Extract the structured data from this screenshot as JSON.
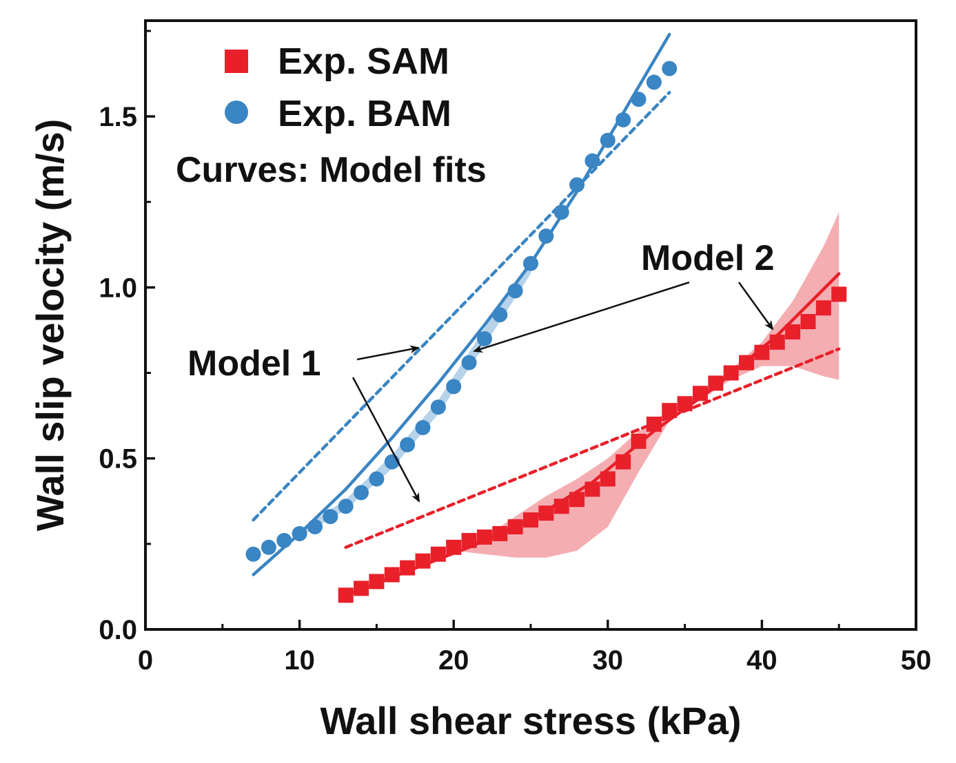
{
  "chart_data": {
    "type": "scatter",
    "xlabel": "Wall shear stress (kPa)",
    "ylabel": "Wall slip velocity (m/s)",
    "xlim": [
      0,
      50
    ],
    "ylim": [
      0,
      1.78
    ],
    "x_ticks": [
      0,
      10,
      20,
      30,
      40,
      50
    ],
    "y_ticks": [
      0.0,
      0.5,
      1.0,
      1.5
    ],
    "x_tick_labels": [
      "0",
      "10",
      "20",
      "30",
      "40",
      "50"
    ],
    "y_tick_labels": [
      "0.0",
      "0.5",
      "1.0",
      "1.5"
    ],
    "grid": false,
    "legend_position": "top-left",
    "colors": {
      "sam": "#e8202a",
      "bam": "#3a85c3",
      "sam_band": "#f2a0a4",
      "bam_band": "#a9cbe6"
    },
    "series": [
      {
        "name": "Exp. SAM",
        "marker": "square",
        "x": [
          13,
          14,
          15,
          16,
          17,
          18,
          19,
          20,
          21,
          22,
          23,
          24,
          25,
          26,
          27,
          28,
          29,
          30,
          31,
          32,
          33,
          34,
          35,
          36,
          37,
          38,
          39,
          40,
          41,
          42,
          43,
          44,
          45
        ],
        "y": [
          0.1,
          0.12,
          0.14,
          0.16,
          0.18,
          0.2,
          0.22,
          0.24,
          0.26,
          0.27,
          0.28,
          0.3,
          0.32,
          0.34,
          0.36,
          0.38,
          0.41,
          0.44,
          0.49,
          0.55,
          0.6,
          0.64,
          0.66,
          0.69,
          0.72,
          0.75,
          0.78,
          0.81,
          0.84,
          0.87,
          0.9,
          0.94,
          0.98
        ]
      },
      {
        "name": "Exp. BAM",
        "marker": "circle",
        "x": [
          7,
          8,
          9,
          10,
          11,
          12,
          13,
          14,
          15,
          16,
          17,
          18,
          19,
          20,
          21,
          22,
          23,
          24,
          25,
          26,
          27,
          28,
          29,
          30,
          31,
          32,
          33,
          34
        ],
        "y": [
          0.22,
          0.24,
          0.26,
          0.28,
          0.3,
          0.33,
          0.36,
          0.4,
          0.44,
          0.49,
          0.54,
          0.59,
          0.65,
          0.71,
          0.78,
          0.85,
          0.92,
          0.99,
          1.07,
          1.15,
          1.22,
          1.3,
          1.37,
          1.43,
          1.49,
          1.55,
          1.6,
          1.64
        ]
      }
    ],
    "fit_curves": [
      {
        "of": "Exp. BAM",
        "model": "Model 1",
        "style": "dashed",
        "x": [
          7,
          34
        ],
        "y": [
          0.32,
          1.57
        ]
      },
      {
        "of": "Exp. BAM",
        "model": "Model 2",
        "style": "solid",
        "x": [
          7,
          10,
          13,
          16,
          19,
          22,
          25,
          28,
          31,
          34
        ],
        "y": [
          0.16,
          0.28,
          0.41,
          0.56,
          0.72,
          0.89,
          1.07,
          1.28,
          1.51,
          1.74
        ]
      },
      {
        "of": "Exp. SAM",
        "model": "Model 1",
        "style": "dashed",
        "x": [
          13,
          45
        ],
        "y": [
          0.24,
          0.82
        ]
      },
      {
        "of": "Exp. SAM",
        "model": "Model 2",
        "style": "solid",
        "x": [
          13,
          17,
          21,
          25,
          29,
          33,
          37,
          41,
          45
        ],
        "y": [
          0.1,
          0.17,
          0.24,
          0.32,
          0.43,
          0.58,
          0.71,
          0.86,
          1.04
        ]
      }
    ],
    "bands": [
      {
        "of": "Exp. SAM",
        "x": [
          20,
          22,
          24,
          26,
          28,
          30,
          32,
          34,
          36,
          38,
          40,
          42,
          44,
          45
        ],
        "upper": [
          0.24,
          0.27,
          0.33,
          0.39,
          0.44,
          0.5,
          0.58,
          0.64,
          0.69,
          0.76,
          0.84,
          0.96,
          1.12,
          1.22
        ],
        "lower": [
          0.23,
          0.22,
          0.21,
          0.21,
          0.23,
          0.3,
          0.46,
          0.61,
          0.67,
          0.73,
          0.77,
          0.77,
          0.74,
          0.73
        ]
      },
      {
        "of": "Exp. BAM",
        "x": [
          10,
          13,
          16,
          19,
          22,
          25
        ],
        "upper": [
          0.29,
          0.38,
          0.51,
          0.67,
          0.88,
          1.08
        ],
        "lower": [
          0.27,
          0.35,
          0.47,
          0.63,
          0.83,
          1.04
        ]
      }
    ],
    "annotations": [
      {
        "text": "Curves: Model fits"
      },
      {
        "text": "Model 1"
      },
      {
        "text": "Model 2"
      }
    ]
  }
}
